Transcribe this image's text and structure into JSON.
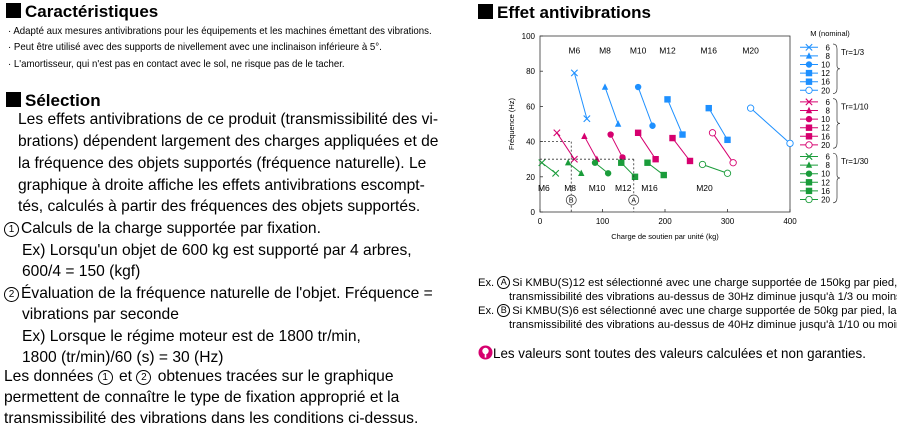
{
  "left": {
    "features_title": "Caractéristiques",
    "features": [
      "· Adapté aux mesures antivibrations pour les équipements et les machines émettant des vibrations.",
      "· Peut être utilisé avec des supports de nivellement avec une inclinaison inférieure à 5°.",
      "· L'amortisseur, qui n'est pas en contact avec le sol, ne risque pas de le tacher."
    ],
    "selection_title": "Sélection",
    "para1": [
      "Les effets antivibrations de ce produit (transmissibilité des vi-",
      "brations) dépendent largement des charges appliquées et de",
      "la fréquence des objets supportés (fréquence naturelle). Le",
      "graphique à droite affiche les effets antivibrations escompt-",
      "tés, calculés à partir des fréquences des objets supportés."
    ],
    "step1_num": "1",
    "step1_title": "Calculs de la charge supportée par fixation.",
    "step1_lines": [
      "Ex) Lorsqu'un objet de 600 kg est supporté par 4 arbres,",
      "600/4 = 150 (kgf)"
    ],
    "step2_num": "2",
    "step2_title": "Évaluation de la fréquence naturelle de l'objet. Fréquence =",
    "step2_lines": [
      "vibrations par seconde",
      "Ex) Lorsque le régime moteur est de 1800 tr/min,",
      "1800 (tr/min)/60 (s) = 30 (Hz)"
    ],
    "final_a": "Les données",
    "final_b": "et",
    "final_c": "obtenues tracées sur le graphique",
    "final_lines": [
      "permettent de connaître le type de fixation approprié et la",
      "transmissibilité des vibrations dans les conditions ci-dessus."
    ]
  },
  "right": {
    "title": "Effet antivibrations",
    "notes": [
      {
        "prefix": "Ex.",
        "mark": "A",
        "line1": "Si KMBU(S)12 est sélectionné avec une charge supportée de 150kg par pied, la",
        "line2": "transmissibilité des vibrations au-dessus de 30Hz diminue jusqu'à 1/3 ou moins."
      },
      {
        "prefix": "Ex.",
        "mark": "B",
        "line1": "Si KMBU(S)6 est sélectionné avec une charge supportée de 50kg par pied, la",
        "line2": "transmissibilité des vibrations au-dessus de 40Hz diminue jusqu'à 1/10 ou moins."
      }
    ],
    "disclaimer": "Les valeurs sont toutes des valeurs calculées et non garanties.",
    "warning_icon": "warning-icon"
  },
  "chart_data": {
    "type": "line",
    "xlabel": "Charge de soutien par unité (kg)",
    "ylabel": "Fréquence (Hz)",
    "xlim": [
      0,
      400
    ],
    "ylim": [
      0,
      100
    ],
    "xticks": [
      0,
      100,
      200,
      300,
      400
    ],
    "yticks": [
      0,
      20,
      40,
      60,
      80,
      100
    ],
    "grid": false,
    "legend_title": "M (nominal)",
    "groups": [
      {
        "name": "Tr=1/3",
        "color": "#1e90ff"
      },
      {
        "name": "Tr=1/10",
        "color": "#d6006f"
      },
      {
        "name": "Tr=1/30",
        "color": "#1a9c3a"
      }
    ],
    "sizes": [
      "6",
      "8",
      "10",
      "12",
      "16",
      "20"
    ],
    "top_labels": [
      "M6",
      "M8",
      "M10",
      "M12",
      "M16",
      "M20"
    ],
    "bottom_labels": [
      "M6",
      "M8",
      "M10",
      "M12",
      "M16",
      "M20"
    ],
    "series": [
      {
        "name": "6",
        "group": "Tr=1/3",
        "x": [
          55,
          75
        ],
        "y": [
          79,
          53
        ]
      },
      {
        "name": "8",
        "group": "Tr=1/3",
        "x": [
          104,
          125
        ],
        "y": [
          71,
          50
        ]
      },
      {
        "name": "10",
        "group": "Tr=1/3",
        "x": [
          157,
          180
        ],
        "y": [
          71,
          49
        ]
      },
      {
        "name": "12",
        "group": "Tr=1/3",
        "x": [
          204,
          228
        ],
        "y": [
          64,
          44
        ]
      },
      {
        "name": "16",
        "group": "Tr=1/3",
        "x": [
          270,
          300
        ],
        "y": [
          59,
          41
        ]
      },
      {
        "name": "20",
        "group": "Tr=1/3",
        "x": [
          337,
          400
        ],
        "y": [
          59,
          39
        ]
      },
      {
        "name": "6",
        "group": "Tr=1/10",
        "x": [
          27,
          55
        ],
        "y": [
          45,
          30
        ]
      },
      {
        "name": "8",
        "group": "Tr=1/10",
        "x": [
          71,
          91
        ],
        "y": [
          43,
          30
        ]
      },
      {
        "name": "10",
        "group": "Tr=1/10",
        "x": [
          113,
          132
        ],
        "y": [
          44,
          31
        ]
      },
      {
        "name": "12",
        "group": "Tr=1/10",
        "x": [
          157,
          185
        ],
        "y": [
          45,
          30
        ]
      },
      {
        "name": "16",
        "group": "Tr=1/10",
        "x": [
          212,
          240
        ],
        "y": [
          42,
          29
        ]
      },
      {
        "name": "20",
        "group": "Tr=1/10",
        "x": [
          276,
          309
        ],
        "y": [
          45,
          28
        ]
      },
      {
        "name": "6",
        "group": "Tr=1/30",
        "x": [
          3,
          25
        ],
        "y": [
          28,
          22
        ]
      },
      {
        "name": "8",
        "group": "Tr=1/30",
        "x": [
          45,
          66
        ],
        "y": [
          28,
          22
        ]
      },
      {
        "name": "10",
        "group": "Tr=1/30",
        "x": [
          88,
          109
        ],
        "y": [
          28,
          22
        ]
      },
      {
        "name": "12",
        "group": "Tr=1/30",
        "x": [
          130,
          152
        ],
        "y": [
          28,
          20
        ]
      },
      {
        "name": "16",
        "group": "Tr=1/30",
        "x": [
          172,
          198
        ],
        "y": [
          28,
          21
        ]
      },
      {
        "name": "20",
        "group": "Tr=1/30",
        "x": [
          260,
          300
        ],
        "y": [
          27,
          22
        ]
      }
    ],
    "annotations": [
      {
        "label": "A",
        "x": 150,
        "y": 30
      },
      {
        "label": "B",
        "x": 50,
        "y": 40
      }
    ]
  }
}
